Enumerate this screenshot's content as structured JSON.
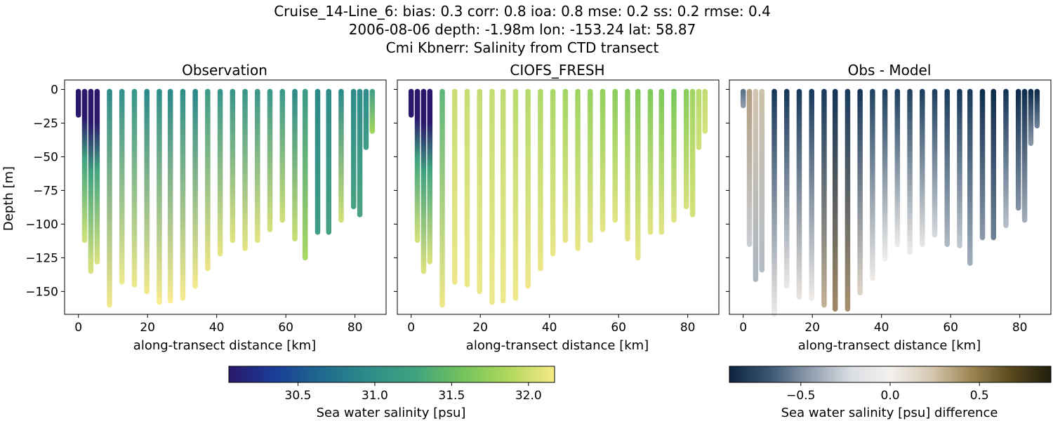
{
  "figure": {
    "title_line1": "Cruise_14-Line_6: bias: 0.3  corr: 0.8  ioa: 0.8  mse: 0.2  ss: 0.2  rmse: 0.4",
    "title_line2": "2006-08-06 depth: -1.98m lon: -153.24 lat: 58.87",
    "title_line3": "Cmi Kbnerr: Salinity from CTD transect"
  },
  "chart_data": [
    {
      "type": "scatter",
      "title": "Observation",
      "xlabel": "along-transect distance [km]",
      "ylabel": "Depth [m]",
      "xlim": [
        -4,
        89
      ],
      "ylim": [
        -167,
        7
      ],
      "xticks": [
        0,
        20,
        40,
        60,
        80
      ],
      "yticks": [
        0,
        -25,
        -50,
        -75,
        -100,
        -125,
        -150
      ],
      "colormap": "haline",
      "casts": [
        {
          "x": 0.0,
          "max_depth": -19,
          "color_top": "#2a186c",
          "color_bottom": "#2a186c"
        },
        {
          "x": 1.8,
          "max_depth": -112,
          "color_top": "#2a186c",
          "color_bottom": "#cfe27a"
        },
        {
          "x": 3.6,
          "max_depth": -135,
          "color_top": "#2a186c",
          "color_bottom": "#d8e27e"
        },
        {
          "x": 5.4,
          "max_depth": -128,
          "color_top": "#2a186c",
          "color_bottom": "#d8e27e"
        },
        {
          "x": 9.0,
          "max_depth": -160,
          "color_top": "#2e8c8a",
          "color_bottom": "#f0e68c"
        },
        {
          "x": 12.6,
          "max_depth": -143,
          "color_top": "#33908a",
          "color_bottom": "#ecea90"
        },
        {
          "x": 16.2,
          "max_depth": -145,
          "color_top": "#36968a",
          "color_bottom": "#ece88e"
        },
        {
          "x": 19.8,
          "max_depth": -150,
          "color_top": "#2a8a8a",
          "color_bottom": "#f0e88c"
        },
        {
          "x": 23.4,
          "max_depth": -158,
          "color_top": "#2f8f8a",
          "color_bottom": "#f7eb8e"
        },
        {
          "x": 26.6,
          "max_depth": -157,
          "color_top": "#2c8a8a",
          "color_bottom": "#f8ec90"
        },
        {
          "x": 30.2,
          "max_depth": -155,
          "color_top": "#309089",
          "color_bottom": "#f6ea8e"
        },
        {
          "x": 33.8,
          "max_depth": -146,
          "color_top": "#2b888a",
          "color_bottom": "#f3e98d"
        },
        {
          "x": 37.4,
          "max_depth": -133,
          "color_top": "#3f9c85",
          "color_bottom": "#ece486"
        },
        {
          "x": 41.0,
          "max_depth": -122,
          "color_top": "#37958b",
          "color_bottom": "#e6e584"
        },
        {
          "x": 44.6,
          "max_depth": -112,
          "color_top": "#3a968b",
          "color_bottom": "#e0e480"
        },
        {
          "x": 48.2,
          "max_depth": -118,
          "color_top": "#3a968b",
          "color_bottom": "#e4e483"
        },
        {
          "x": 51.8,
          "max_depth": -112,
          "color_top": "#3b978a",
          "color_bottom": "#e2e482"
        },
        {
          "x": 55.4,
          "max_depth": -104,
          "color_top": "#3c988a",
          "color_bottom": "#d6e07c"
        },
        {
          "x": 59.0,
          "max_depth": -97,
          "color_top": "#3c988a",
          "color_bottom": "#cfe079"
        },
        {
          "x": 62.6,
          "max_depth": -111,
          "color_top": "#2e8b8a",
          "color_bottom": "#c8df74"
        },
        {
          "x": 65.6,
          "max_depth": -125,
          "color_top": "#3a9a88",
          "color_bottom": "#a7d862"
        },
        {
          "x": 69.2,
          "max_depth": -106,
          "color_top": "#2d8a8a",
          "color_bottom": "#3f9c86"
        },
        {
          "x": 72.4,
          "max_depth": -106,
          "color_top": "#2e8c8a",
          "color_bottom": "#47a183"
        },
        {
          "x": 76.0,
          "max_depth": -97,
          "color_top": "#2d8a8a",
          "color_bottom": "#cfe078"
        },
        {
          "x": 79.6,
          "max_depth": -87,
          "color_top": "#2e8c8a",
          "color_bottom": "#46a184"
        },
        {
          "x": 81.4,
          "max_depth": -93,
          "color_top": "#2e8c8a",
          "color_bottom": "#4da482"
        },
        {
          "x": 83.2,
          "max_depth": -43,
          "color_top": "#2e8c8a",
          "color_bottom": "#3f9c87"
        },
        {
          "x": 85.0,
          "max_depth": -31,
          "color_top": "#46a184",
          "color_bottom": "#9fd560"
        }
      ]
    },
    {
      "type": "scatter",
      "title": "CIOFS_FRESH",
      "xlabel": "along-transect distance [km]",
      "xlim": [
        -4,
        89
      ],
      "ylim": [
        -167,
        7
      ],
      "xticks": [
        0,
        20,
        40,
        60,
        80
      ],
      "yticks": [
        0,
        -25,
        -50,
        -75,
        -100,
        -125,
        -150
      ],
      "colormap": "haline",
      "casts": [
        {
          "x": 0.0,
          "max_depth": -19,
          "color_top": "#2a186c",
          "color_bottom": "#2a186c"
        },
        {
          "x": 1.8,
          "max_depth": -112,
          "color_top": "#2a186c",
          "color_bottom": "#d4e27c"
        },
        {
          "x": 3.6,
          "max_depth": -135,
          "color_top": "#2a186c",
          "color_bottom": "#dae27e"
        },
        {
          "x": 5.4,
          "max_depth": -128,
          "color_top": "#2a186c",
          "color_bottom": "#dae27e"
        },
        {
          "x": 9.0,
          "max_depth": -160,
          "color_top": "#5fb67a",
          "color_bottom": "#ede78a"
        },
        {
          "x": 12.6,
          "max_depth": -143,
          "color_top": "#c9de74",
          "color_bottom": "#ece78a"
        },
        {
          "x": 16.2,
          "max_depth": -145,
          "color_top": "#c6de72",
          "color_bottom": "#ece78a"
        },
        {
          "x": 19.8,
          "max_depth": -150,
          "color_top": "#c4dd72",
          "color_bottom": "#ede78b"
        },
        {
          "x": 23.4,
          "max_depth": -158,
          "color_top": "#c2dd71",
          "color_bottom": "#efe88c"
        },
        {
          "x": 26.6,
          "max_depth": -157,
          "color_top": "#bfdc70",
          "color_bottom": "#efe88c"
        },
        {
          "x": 30.2,
          "max_depth": -155,
          "color_top": "#badb6e",
          "color_bottom": "#efe88c"
        },
        {
          "x": 33.8,
          "max_depth": -146,
          "color_top": "#b6da6c",
          "color_bottom": "#ede78b"
        },
        {
          "x": 37.4,
          "max_depth": -133,
          "color_top": "#b0d96a",
          "color_bottom": "#ebe689"
        },
        {
          "x": 41.0,
          "max_depth": -122,
          "color_top": "#aad867",
          "color_bottom": "#e9e688"
        },
        {
          "x": 44.6,
          "max_depth": -112,
          "color_top": "#a4d665",
          "color_bottom": "#e7e587"
        },
        {
          "x": 48.2,
          "max_depth": -118,
          "color_top": "#9ed462",
          "color_bottom": "#e7e587"
        },
        {
          "x": 51.8,
          "max_depth": -112,
          "color_top": "#98d260",
          "color_bottom": "#e6e586"
        },
        {
          "x": 55.4,
          "max_depth": -104,
          "color_top": "#92d05e",
          "color_bottom": "#e4e485"
        },
        {
          "x": 59.0,
          "max_depth": -97,
          "color_top": "#8cce5c",
          "color_bottom": "#e2e484"
        },
        {
          "x": 62.6,
          "max_depth": -111,
          "color_top": "#86cc5b",
          "color_bottom": "#e4e485"
        },
        {
          "x": 65.6,
          "max_depth": -125,
          "color_top": "#84cb5a",
          "color_bottom": "#e8e687"
        },
        {
          "x": 69.2,
          "max_depth": -106,
          "color_top": "#80ca5a",
          "color_bottom": "#e2e484"
        },
        {
          "x": 72.4,
          "max_depth": -106,
          "color_top": "#7cc95a",
          "color_bottom": "#e2e484"
        },
        {
          "x": 76.0,
          "max_depth": -97,
          "color_top": "#78c85a",
          "color_bottom": "#dee382"
        },
        {
          "x": 79.6,
          "max_depth": -87,
          "color_top": "#88cd5c",
          "color_bottom": "#d6e07c"
        },
        {
          "x": 81.4,
          "max_depth": -93,
          "color_top": "#a2d563",
          "color_bottom": "#d4e07b"
        },
        {
          "x": 83.2,
          "max_depth": -43,
          "color_top": "#b8db6d",
          "color_bottom": "#cde077"
        },
        {
          "x": 85.0,
          "max_depth": -31,
          "color_top": "#c4dd71",
          "color_bottom": "#d4e27c"
        }
      ]
    },
    {
      "type": "scatter",
      "title": "Obs - Model",
      "xlabel": "along-transect distance [km]",
      "xlim": [
        -4,
        89
      ],
      "ylim": [
        -167,
        7
      ],
      "xticks": [
        0,
        20,
        40,
        60,
        80
      ],
      "yticks": [
        0,
        -25,
        -50,
        -75,
        -100,
        -125,
        -150
      ],
      "colormap": "diff",
      "casts": [
        {
          "x": 0.0,
          "max_depth": -12,
          "color_top": "#5d7388",
          "color_bottom": "#8d9aa8"
        },
        {
          "x": 1.8,
          "max_depth": -115,
          "color_top": "#b29e80",
          "color_bottom": "#c9ccd2"
        },
        {
          "x": 3.6,
          "max_depth": -141,
          "color_top": "#d2c4ae",
          "color_bottom": "#adb6c0"
        },
        {
          "x": 5.4,
          "max_depth": -134,
          "color_top": "#cbc0aa",
          "color_bottom": "#b4bcc6"
        },
        {
          "x": 9.0,
          "max_depth": -167,
          "color_top": "#17385a",
          "color_bottom": "#ede9e6"
        },
        {
          "x": 12.6,
          "max_depth": -146,
          "color_top": "#17385a",
          "color_bottom": "#ebe8e6"
        },
        {
          "x": 16.2,
          "max_depth": -154,
          "color_top": "#1a3b5d",
          "color_bottom": "#e8e2dc"
        },
        {
          "x": 19.8,
          "max_depth": -155,
          "color_top": "#1a3b5d",
          "color_bottom": "#eeeae7"
        },
        {
          "x": 23.4,
          "max_depth": -160,
          "color_top": "#1a3b5d",
          "color_bottom": "#c2b095"
        },
        {
          "x": 26.6,
          "max_depth": -163,
          "color_top": "#163659",
          "color_bottom": "#9f8864"
        },
        {
          "x": 30.2,
          "max_depth": -163,
          "color_top": "#1b3c5e",
          "color_bottom": "#a69070"
        },
        {
          "x": 33.8,
          "max_depth": -151,
          "color_top": "#163659",
          "color_bottom": "#ddd4c8"
        },
        {
          "x": 37.4,
          "max_depth": -140,
          "color_top": "#234564",
          "color_bottom": "#ece9e6"
        },
        {
          "x": 41.0,
          "max_depth": -126,
          "color_top": "#20425f",
          "color_bottom": "#f0eeec"
        },
        {
          "x": 44.6,
          "max_depth": -115,
          "color_top": "#1e4060",
          "color_bottom": "#eceae8"
        },
        {
          "x": 48.2,
          "max_depth": -121,
          "color_top": "#204260",
          "color_bottom": "#eeebe8"
        },
        {
          "x": 51.8,
          "max_depth": -115,
          "color_top": "#1e4060",
          "color_bottom": "#e6e4e2"
        },
        {
          "x": 55.4,
          "max_depth": -108,
          "color_top": "#204260",
          "color_bottom": "#d4d8dd"
        },
        {
          "x": 59.0,
          "max_depth": -115,
          "color_top": "#1c3e5e",
          "color_bottom": "#aeb8c2"
        },
        {
          "x": 62.6,
          "max_depth": -116,
          "color_top": "#183a5b",
          "color_bottom": "#c1c7cf"
        },
        {
          "x": 65.6,
          "max_depth": -129,
          "color_top": "#1a3b5c",
          "color_bottom": "#a1adb9"
        },
        {
          "x": 69.2,
          "max_depth": -110,
          "color_top": "#0f2d4d",
          "color_bottom": "#8a99a9"
        },
        {
          "x": 72.4,
          "max_depth": -110,
          "color_top": "#0f2d4d",
          "color_bottom": "#6d8096"
        },
        {
          "x": 76.0,
          "max_depth": -101,
          "color_top": "#163659",
          "color_bottom": "#b6bfc8"
        },
        {
          "x": 79.6,
          "max_depth": -88,
          "color_top": "#0f2d4d",
          "color_bottom": "#8392a3"
        },
        {
          "x": 81.4,
          "max_depth": -97,
          "color_top": "#0f2d4d",
          "color_bottom": "#a1acb8"
        },
        {
          "x": 83.2,
          "max_depth": -40,
          "color_top": "#0f2d4d",
          "color_bottom": "#8796a6"
        },
        {
          "x": 85.0,
          "max_depth": -27,
          "color_top": "#0f2d4d",
          "color_bottom": "#6d8096"
        }
      ]
    }
  ],
  "colorbars": [
    {
      "label": "Sea water salinity [psu]",
      "vmin": 30.05,
      "vmax": 32.17,
      "ticks": [
        "30.5",
        "31.0",
        "31.5",
        "32.0"
      ],
      "tick_values": [
        30.5,
        31.0,
        31.5,
        32.0
      ],
      "stops": [
        "#2a186c",
        "#1a3d99",
        "#1f6a8e",
        "#2e8c89",
        "#3fa37f",
        "#73c25c",
        "#b0d75c",
        "#f5ea87"
      ]
    },
    {
      "label": "Sea water salinity [psu] difference",
      "vmin": -0.9,
      "vmax": 0.9,
      "ticks": [
        "−0.5",
        "0.0",
        "0.5"
      ],
      "tick_values": [
        -0.5,
        0.0,
        0.5
      ],
      "stops": [
        "#0c2340",
        "#3b5774",
        "#8e9cad",
        "#d9dde2",
        "#f4f1ee",
        "#d7c9b3",
        "#9e8755",
        "#5a4a1e",
        "#1f1e0c"
      ]
    }
  ]
}
